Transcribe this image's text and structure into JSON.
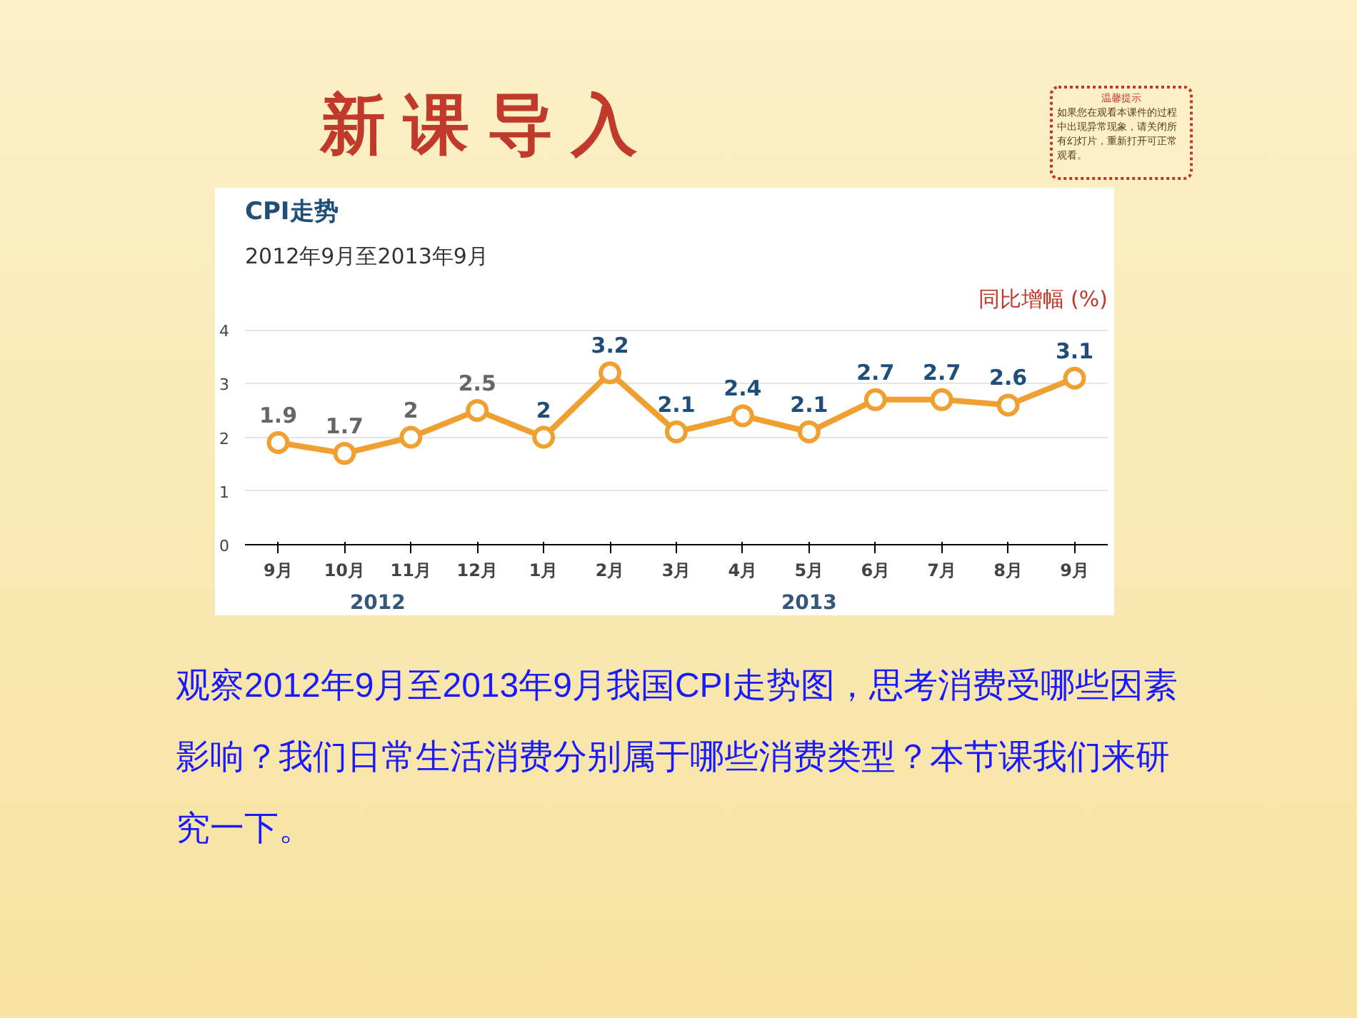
{
  "chart_data": {
    "type": "line",
    "title": "CPI走势",
    "subtitle": "2012年9月至2013年9月",
    "ylabel": "同比增幅 (%)",
    "categories": [
      "9月",
      "10月",
      "11月",
      "12月",
      "1月",
      "2月",
      "3月",
      "4月",
      "5月",
      "6月",
      "7月",
      "8月",
      "9月"
    ],
    "series": [
      {
        "color": "#f0a030",
        "values": [
          1.9,
          1.7,
          2,
          2.5,
          2,
          3.2,
          2.1,
          2.4,
          2.1,
          2.7,
          2.7,
          2.6,
          3.1
        ]
      }
    ],
    "ylim": [
      0,
      4.2
    ],
    "yticks": [
      0,
      1,
      2,
      3,
      4
    ],
    "grid": "y",
    "marker": "circle",
    "line_style": "solid",
    "data_labels": true,
    "annotations": [
      "新 课 导 入",
      "温馨提示",
      "如果您在观看本课件的过程中出现异常现象，请关闭所有幻灯片，重新打开可正常观看。",
      "2012",
      "2013",
      "观察2012年9月至2013年9月我国CPI走势图，思考消费受哪些因素影响？我们日常生活消费分别属于哪些消费类型？本节课我们来研究一下。"
    ]
  }
}
